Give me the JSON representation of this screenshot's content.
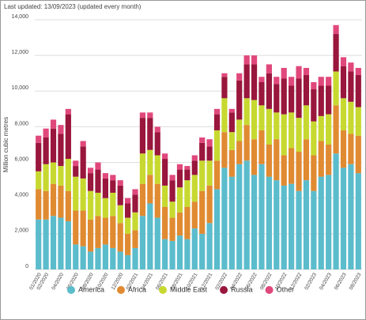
{
  "chart_data": {
    "type": "stacked_bar",
    "subtitle": "Last updated: 13/09/2023 (updated every month)",
    "y_label": "Million cubic metres",
    "categories": [
      "01/2020",
      "02/2020",
      null,
      "04/2020",
      null,
      "06/2020",
      null,
      "08/2020",
      null,
      "10/2020",
      null,
      "12/2020",
      null,
      "02/2021",
      null,
      "04/2021",
      null,
      "06/2021",
      null,
      "08/2021",
      null,
      "10/2021",
      null,
      "12/2021",
      null,
      "02/2022",
      null,
      "04/2022",
      null,
      "06/2022",
      null,
      "08/2022",
      null,
      "10/2022",
      null,
      "12/2022",
      null,
      "02/2023",
      null,
      "04/2023",
      null,
      "06/2023",
      null,
      "08/2023"
    ],
    "series": [
      {
        "name": "America",
        "color": "#5bbccc",
        "values": [
          2800,
          2800,
          3000,
          2900,
          2700,
          1400,
          1300,
          1000,
          1200,
          1400,
          1200,
          1000,
          800,
          1200,
          3000,
          3700,
          2900,
          1700,
          1600,
          1900,
          1700,
          2300,
          2000,
          2600,
          4500,
          5700,
          5200,
          5900,
          6100,
          5300,
          5900,
          5200,
          5000,
          4700,
          4800,
          4400,
          5000,
          4400,
          5200,
          5300,
          6500,
          5700,
          5900,
          5400
        ]
      },
      {
        "name": "Africa",
        "color": "#e08a32",
        "values": [
          1700,
          1600,
          1800,
          1800,
          1700,
          1900,
          2000,
          1800,
          1800,
          1500,
          1800,
          1600,
          1200,
          1000,
          1800,
          1600,
          1900,
          1800,
          1300,
          1300,
          1800,
          1500,
          2400,
          2100,
          1600,
          2000,
          1500,
          1300,
          2000,
          2000,
          1900,
          1800,
          2300,
          1700,
          2000,
          2200,
          2300,
          2000,
          2000,
          1700,
          2700,
          2100,
          1700,
          2100
        ]
      },
      {
        "name": "Middle East",
        "color": "#c7d930",
        "values": [
          1000,
          1500,
          1200,
          1100,
          1800,
          1900,
          1800,
          1600,
          1300,
          1100,
          1300,
          1000,
          900,
          1000,
          1700,
          1400,
          1600,
          1200,
          900,
          1400,
          1500,
          1500,
          1700,
          1400,
          1700,
          1900,
          1000,
          1200,
          1500,
          2200,
          1400,
          2000,
          1500,
          2300,
          2000,
          1900,
          1900,
          1900,
          1400,
          1700,
          1900,
          1800,
          1800,
          1600
        ]
      },
      {
        "name": "Russia",
        "color": "#99163c",
        "values": [
          1600,
          1500,
          1900,
          1800,
          2500,
          600,
          1800,
          1000,
          1300,
          1100,
          700,
          1100,
          800,
          1000,
          2000,
          1800,
          1300,
          1500,
          1200,
          1000,
          600,
          800,
          1000,
          800,
          900,
          1200,
          1100,
          2200,
          1900,
          2000,
          1300,
          2000,
          1600,
          2000,
          1500,
          2200,
          1700,
          1800,
          1700,
          1600,
          2100,
          1800,
          1700,
          1800
        ]
      },
      {
        "name": "Other",
        "color": "#e0487c",
        "values": [
          400,
          500,
          500,
          500,
          300,
          300,
          300,
          300,
          400,
          300,
          300,
          300,
          300,
          300,
          300,
          300,
          300,
          300,
          300,
          300,
          200,
          300,
          300,
          400,
          300,
          200,
          200,
          400,
          500,
          500,
          300,
          500,
          400,
          600,
          500,
          700,
          400,
          400,
          500,
          500,
          500,
          500,
          500,
          400
        ]
      }
    ],
    "ylim": [
      0,
      14000
    ],
    "yticks": [
      0,
      {
        "value": 2000,
        "label": "2,000"
      },
      {
        "value": 4000,
        "label": "4,000"
      },
      {
        "value": 6000,
        "label": "6,000"
      },
      {
        "value": 8000,
        "label": "8,000"
      },
      {
        "value": 10000,
        "label": "10,000"
      },
      {
        "value": 12000,
        "label": "12,000"
      },
      {
        "value": 14000,
        "label": "14,000"
      }
    ],
    "grid": true,
    "legend": "bottom"
  }
}
